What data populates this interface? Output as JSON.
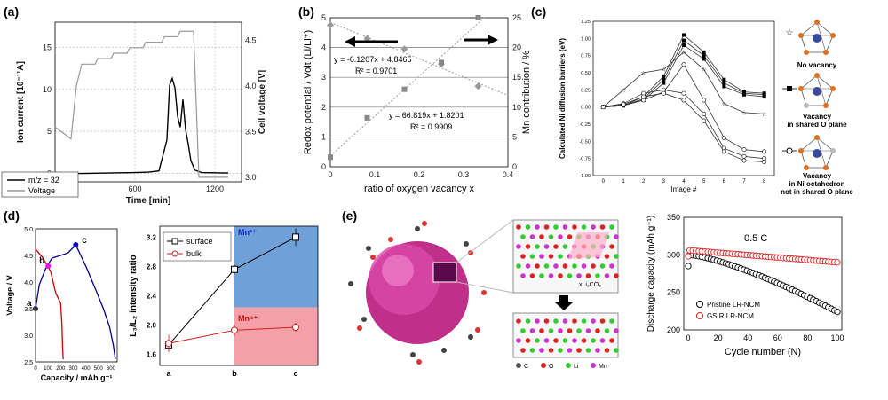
{
  "panels": {
    "a": "(a)",
    "b": "(b)",
    "c": "(c)",
    "d": "(d)",
    "e": "(e)"
  },
  "chart_data": [
    {
      "id": "a",
      "type": "line",
      "xlabel": "Time [min]",
      "ylabel_left": "Ion current [10⁻¹¹A]",
      "ylabel_right": "Cell voltage [V]",
      "x_ticks": [
        "0",
        "600",
        "1200"
      ],
      "y_left_ticks": [
        "0",
        "5",
        "10",
        "15"
      ],
      "y_right_ticks": [
        "3.0",
        "3.5",
        "4.0",
        "4.5"
      ],
      "xlim": [
        0,
        1400
      ],
      "ylim_left": [
        -1,
        18
      ],
      "ylim_right": [
        2.95,
        4.7
      ],
      "grid": true,
      "legend": {
        "position": "bottom-left",
        "entries": [
          "m/z = 32",
          "Voltage"
        ]
      },
      "series": [
        {
          "name": "m/z = 32",
          "color": "#000000",
          "x": [
            0,
            200,
            400,
            600,
            700,
            780,
            840,
            860,
            880,
            900,
            920,
            940,
            960,
            980,
            1000,
            1020,
            1050,
            1100,
            1300
          ],
          "y": [
            0,
            0,
            0.05,
            0.1,
            0.15,
            0.3,
            4,
            10.5,
            11.3,
            10.2,
            6.8,
            5.5,
            8.8,
            5.2,
            3.5,
            1.5,
            0.4,
            0.1,
            0.05
          ]
        },
        {
          "name": "Voltage",
          "color": "#999999",
          "x": [
            0,
            120,
            160,
            200,
            300,
            320,
            420,
            440,
            540,
            560,
            660,
            680,
            800,
            820,
            920,
            940,
            1040,
            1080,
            1180,
            1220,
            1300
          ],
          "y": [
            3.55,
            3.42,
            4.0,
            4.24,
            4.24,
            4.3,
            4.3,
            4.36,
            4.36,
            4.42,
            4.42,
            4.48,
            4.48,
            4.54,
            4.54,
            4.6,
            4.6,
            3.0,
            3.0,
            3.0,
            3.0
          ]
        }
      ]
    },
    {
      "id": "b",
      "type": "scatter",
      "xlabel": "ratio of oxygen vacancy  x",
      "ylabel_left": "Redox potential / Volt  (Li/Li⁺)",
      "ylabel_right": "Mn contribution  / %",
      "x_ticks": [
        "0",
        "0.1",
        "0.2",
        "0.3",
        "0.4"
      ],
      "y_left_ticks": [
        "0",
        "1",
        "2",
        "3",
        "4",
        "5"
      ],
      "y_right_ticks": [
        "0",
        "5",
        "10",
        "15",
        "20",
        "25"
      ],
      "xlim": [
        0,
        0.4
      ],
      "ylim_left": [
        0,
        5
      ],
      "ylim_right": [
        0,
        25
      ],
      "annotations": [
        "y = -6.1207x + 4.8465",
        "R² = 0.9701",
        "y = 66.819x + 1.8201",
        "R² = 0.9909"
      ],
      "series": [
        {
          "axis": "left",
          "color": "#999999",
          "marker": "diamond",
          "x": [
            0,
            0.083,
            0.167,
            0.25,
            0.333
          ],
          "y": [
            4.75,
            4.3,
            3.95,
            3.45,
            2.7
          ]
        },
        {
          "axis": "right",
          "color": "#888888",
          "marker": "square",
          "x": [
            0,
            0.083,
            0.167,
            0.25,
            0.333
          ],
          "y": [
            1.6,
            8.2,
            13,
            17.5,
            25
          ]
        }
      ]
    },
    {
      "id": "c",
      "type": "line",
      "xlabel": "Image #",
      "ylabel": "Calculated Ni diffusion barriers (eV)",
      "x_ticks": [
        "0",
        "1",
        "2",
        "3",
        "4",
        "5",
        "6",
        "7",
        "8"
      ],
      "y_ticks": [
        "-1.00",
        "-0.75",
        "-0.50",
        "-0.25",
        "0.00",
        "0.25",
        "0.50",
        "0.75",
        "1.00",
        "1.25"
      ],
      "xlim": [
        -0.5,
        8.5
      ],
      "ylim": [
        -1.0,
        1.25
      ],
      "legend_labels": [
        "No vacancy",
        "Vacancy in shared O plane",
        "Vacancy in Ni octahedron not in shared O plane"
      ],
      "series": [
        {
          "marker": "star",
          "x": [
            0,
            1,
            2,
            3,
            4,
            5,
            6,
            7,
            8
          ],
          "y": [
            0,
            0.25,
            0.5,
            0.55,
            0.8,
            0.55,
            0.05,
            -0.08,
            -0.1
          ]
        },
        {
          "marker": "filled-square",
          "x": [
            0,
            1,
            2,
            3,
            4,
            5,
            6,
            7,
            8
          ],
          "y": [
            0,
            0.02,
            0.15,
            0.45,
            1.05,
            0.8,
            0.4,
            0.22,
            0.2
          ]
        },
        {
          "marker": "filled-square",
          "x": [
            0,
            1,
            2,
            3,
            4,
            5,
            6,
            7,
            8
          ],
          "y": [
            0,
            0.02,
            0.12,
            0.4,
            0.97,
            0.75,
            0.35,
            0.2,
            0.18
          ]
        },
        {
          "marker": "filled-square",
          "x": [
            0,
            1,
            2,
            3,
            4,
            5,
            6,
            7,
            8
          ],
          "y": [
            0,
            0.02,
            0.1,
            0.35,
            0.9,
            0.7,
            0.3,
            0.18,
            0.15
          ]
        },
        {
          "marker": "open-circle",
          "x": [
            0,
            1,
            2,
            3,
            4,
            5,
            6,
            7,
            8
          ],
          "y": [
            0,
            0.03,
            0.1,
            0.22,
            0.62,
            0.1,
            -0.45,
            -0.62,
            -0.65
          ]
        },
        {
          "marker": "open-circle",
          "x": [
            0,
            1,
            2,
            3,
            4,
            5,
            6,
            7,
            8
          ],
          "y": [
            0,
            0.05,
            0.2,
            0.25,
            0.2,
            -0.1,
            -0.6,
            -0.72,
            -0.75
          ]
        },
        {
          "marker": "open-circle",
          "x": [
            0,
            1,
            2,
            3,
            4,
            5,
            6,
            7,
            8
          ],
          "y": [
            0,
            0.04,
            0.15,
            0.2,
            0.1,
            -0.2,
            -0.65,
            -0.78,
            -0.8
          ]
        }
      ]
    },
    {
      "id": "d1",
      "type": "line",
      "xlabel": "Capacity / mAh g⁻¹",
      "ylabel": "Voltage / V",
      "x_ticks": [
        "0",
        "100",
        "200",
        "300",
        "400",
        "500",
        "600"
      ],
      "y_ticks": [
        "2.5",
        "3.0",
        "3.5",
        "4.0",
        "4.5",
        "5.0"
      ],
      "xlim": [
        0,
        650
      ],
      "ylim": [
        2.5,
        5.0
      ],
      "point_labels": [
        "a",
        "b",
        "c"
      ],
      "series": [
        {
          "color": "#cc0000",
          "x": [
            0,
            60,
            120,
            160,
            200,
            210,
            215,
            220
          ],
          "y": [
            4.62,
            4.45,
            4.2,
            3.8,
            3.6,
            3.2,
            2.8,
            2.55
          ]
        },
        {
          "color": "#00008b",
          "x": [
            0,
            30,
            80,
            130,
            200,
            260,
            320
          ],
          "y": [
            3.5,
            3.95,
            4.25,
            4.45,
            4.5,
            4.55,
            4.7
          ]
        },
        {
          "color": "#00008b",
          "x": [
            320,
            400,
            480,
            540,
            590,
            620,
            635
          ],
          "y": [
            4.7,
            4.3,
            3.85,
            3.5,
            3.15,
            2.8,
            2.55
          ]
        }
      ],
      "points": [
        {
          "label": "a",
          "x": 0,
          "y": 3.5,
          "color": "#333333"
        },
        {
          "label": "b",
          "x": 100,
          "y": 4.3,
          "color": "#ff00ff"
        },
        {
          "label": "c",
          "x": 320,
          "y": 4.7,
          "color": "#0000cc"
        }
      ]
    },
    {
      "id": "d2",
      "type": "line",
      "categories": [
        "a",
        "b",
        "c"
      ],
      "ylabel": "L₃/L₂ intensity ratio",
      "y_ticks": [
        "1.6",
        "2.0",
        "2.4",
        "2.8",
        "3.2"
      ],
      "ylim": [
        1.45,
        3.35
      ],
      "legend": {
        "position": "top-left",
        "entries": [
          "surface",
          "bulk"
        ]
      },
      "regions": [
        {
          "label": "Mn³⁺",
          "color": "#6fa0d8"
        },
        {
          "label": "Mn⁴⁺",
          "color": "#f4a0a8"
        }
      ],
      "series": [
        {
          "name": "surface",
          "color": "#000000",
          "marker": "square",
          "values": [
            1.73,
            2.76,
            3.2
          ],
          "err": [
            0.06,
            0.06,
            0.12
          ]
        },
        {
          "name": "bulk",
          "color": "#cc2222",
          "marker": "circle",
          "values": [
            1.75,
            1.93,
            1.97
          ],
          "err": [
            0.12,
            0.08,
            0.06
          ]
        }
      ]
    },
    {
      "id": "e",
      "type": "scatter",
      "xlabel": "Cycle number (N)",
      "ylabel": "Discharge capacity (mAh g⁻¹)",
      "annotation": "0.5 C",
      "x_ticks": [
        "0",
        "20",
        "40",
        "60",
        "80",
        "100"
      ],
      "y_ticks": [
        "200",
        "250",
        "300",
        "350"
      ],
      "xlim": [
        -3,
        103
      ],
      "ylim": [
        200,
        350
      ],
      "legend": {
        "position": "bottom-left",
        "entries": [
          "Pristine LR-NCM",
          "GSIR LR-NCM"
        ]
      },
      "series": [
        {
          "name": "Pristine LR-NCM",
          "color": "#000000",
          "x_start": 1,
          "x_end": 100,
          "y_start": 300,
          "y_end": 224,
          "first_point": 285
        },
        {
          "name": "GSIR LR-NCM",
          "color": "#dd2222",
          "x_start": 1,
          "x_end": 100,
          "y_start": 306,
          "y_end": 290,
          "first_point": 298
        }
      ]
    }
  ],
  "illustration": {
    "caption": "xLi₂CO₃",
    "legend": [
      "C",
      "O",
      "Li",
      "Mn"
    ]
  }
}
